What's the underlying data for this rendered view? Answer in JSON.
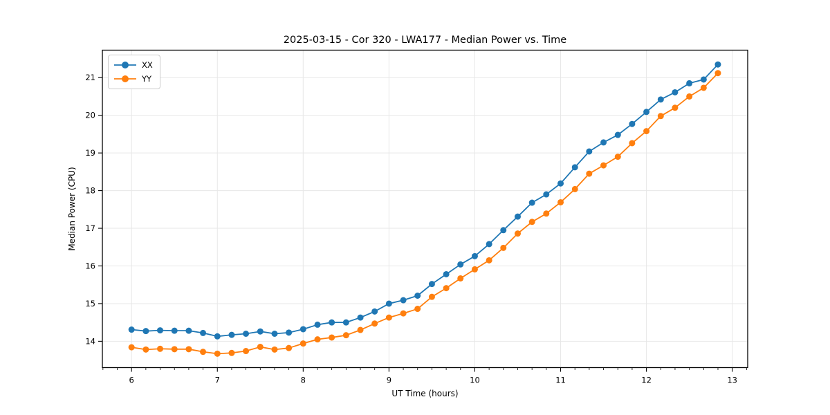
{
  "page": {
    "background_color": "#ffffff"
  },
  "colors": {
    "series_xx": "#1f77b4",
    "series_yy": "#ff7f0e",
    "grid": "#e7e7e7",
    "spine": "#000000",
    "legend_border": "#cccccc"
  },
  "chart_data": {
    "type": "line",
    "title": "2025-03-15 - Cor 320 - LWA177 - Median Power vs. Time",
    "xlabel": "UT Time (hours)",
    "ylabel": "Median Power (CPU)",
    "xlim": [
      5.66,
      13.18
    ],
    "ylim": [
      13.3,
      21.73
    ],
    "x_major_ticks": [
      6,
      7,
      8,
      9,
      10,
      11,
      12,
      13
    ],
    "y_major_ticks": [
      14,
      15,
      16,
      17,
      18,
      19,
      20,
      21
    ],
    "x_minor_tick_step_hours": 0.1667,
    "grid": true,
    "legend_position": "upper-left",
    "marker": "circle",
    "x": [
      6.0,
      6.167,
      6.333,
      6.5,
      6.667,
      6.833,
      7.0,
      7.167,
      7.333,
      7.5,
      7.667,
      7.833,
      8.0,
      8.167,
      8.333,
      8.5,
      8.667,
      8.833,
      9.0,
      9.167,
      9.333,
      9.5,
      9.667,
      9.833,
      10.0,
      10.167,
      10.333,
      10.5,
      10.667,
      10.833,
      11.0,
      11.167,
      11.333,
      11.5,
      11.667,
      11.833,
      12.0,
      12.167,
      12.333,
      12.5,
      12.667,
      12.833
    ],
    "series": [
      {
        "name": "XX",
        "color": "#1f77b4",
        "values": [
          14.31,
          14.27,
          14.29,
          14.28,
          14.28,
          14.22,
          14.13,
          14.17,
          14.2,
          14.26,
          14.2,
          14.23,
          14.32,
          14.44,
          14.5,
          14.5,
          14.63,
          14.79,
          15.0,
          15.09,
          15.21,
          15.52,
          15.78,
          16.04,
          16.26,
          16.58,
          16.95,
          17.31,
          17.68,
          17.9,
          18.19,
          18.62,
          19.04,
          19.28,
          19.48,
          19.77,
          20.09,
          20.42,
          20.61,
          20.85,
          20.95,
          21.35
        ]
      },
      {
        "name": "YY",
        "color": "#ff7f0e",
        "values": [
          13.84,
          13.78,
          13.8,
          13.79,
          13.79,
          13.72,
          13.67,
          13.69,
          13.74,
          13.85,
          13.78,
          13.82,
          13.94,
          14.05,
          14.1,
          14.16,
          14.3,
          14.47,
          14.63,
          14.74,
          14.86,
          15.18,
          15.41,
          15.67,
          15.91,
          16.15,
          16.48,
          16.86,
          17.17,
          17.39,
          17.69,
          18.04,
          18.45,
          18.67,
          18.9,
          19.26,
          19.58,
          19.98,
          20.2,
          20.5,
          20.73,
          21.12
        ]
      }
    ]
  }
}
